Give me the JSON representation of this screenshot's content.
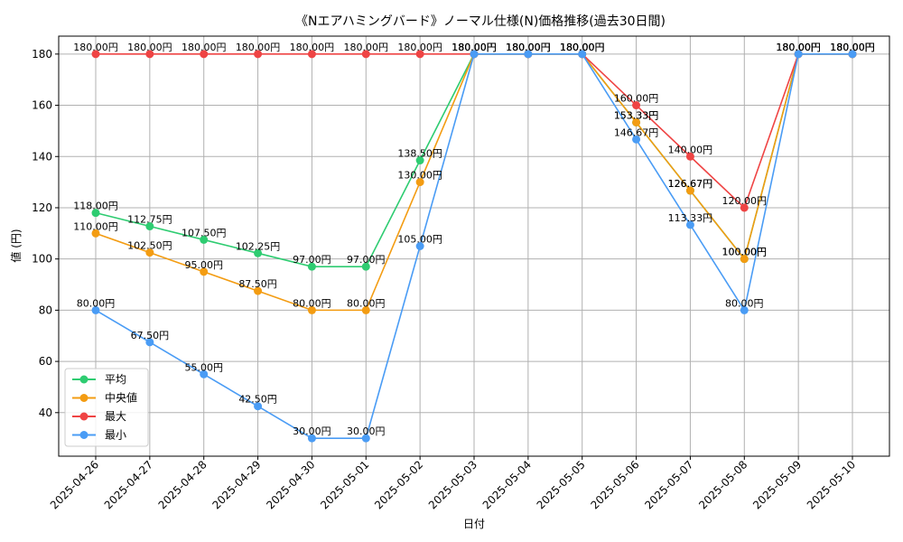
{
  "chart_data": {
    "type": "line",
    "title": "《Nエアハミングバード》ノーマル仕様(N)価格推移(過去30日間)",
    "xlabel": "日付",
    "ylabel": "値 (円)",
    "categories": [
      "2025-04-26",
      "2025-04-27",
      "2025-04-28",
      "2025-04-29",
      "2025-04-30",
      "2025-05-01",
      "2025-05-02",
      "2025-05-03",
      "2025-05-04",
      "2025-05-05",
      "2025-05-06",
      "2025-05-07",
      "2025-05-08",
      "2025-05-09",
      "2025-05-10"
    ],
    "yticks": [
      40,
      60,
      80,
      100,
      120,
      140,
      160,
      180
    ],
    "ylim": [
      23,
      187
    ],
    "grid": true,
    "legend_position": "lower-left",
    "label_suffix": "円",
    "series": [
      {
        "name": "平均",
        "color": "#2ecc71",
        "values": [
          118.0,
          112.75,
          107.5,
          102.25,
          97.0,
          97.0,
          138.5,
          180.0,
          180.0,
          180.0,
          153.33,
          126.67,
          100.0,
          180.0,
          180.0
        ]
      },
      {
        "name": "中央値",
        "color": "#f39c12",
        "values": [
          110.0,
          102.5,
          95.0,
          87.5,
          80.0,
          80.0,
          130.0,
          180.0,
          180.0,
          180.0,
          153.33,
          126.67,
          100.0,
          180.0,
          180.0
        ]
      },
      {
        "name": "最大",
        "color": "#ef4444",
        "values": [
          180.0,
          180.0,
          180.0,
          180.0,
          180.0,
          180.0,
          180.0,
          180.0,
          180.0,
          180.0,
          160.0,
          140.0,
          120.0,
          180.0,
          180.0
        ]
      },
      {
        "name": "最小",
        "color": "#4a9cf5",
        "values": [
          80.0,
          67.5,
          55.0,
          42.5,
          30.0,
          30.0,
          105.0,
          180.0,
          180.0,
          180.0,
          146.67,
          113.33,
          80.0,
          180.0,
          180.0
        ]
      }
    ]
  }
}
